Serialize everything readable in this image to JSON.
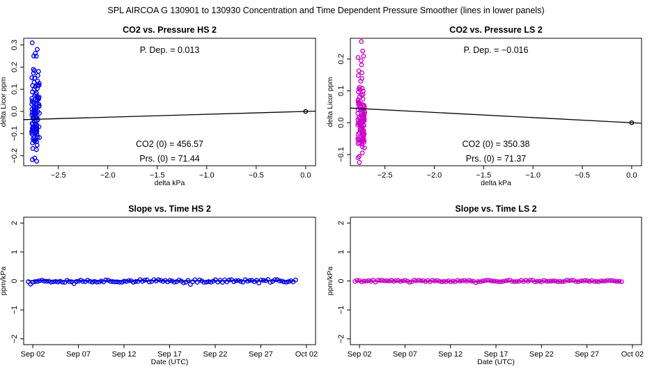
{
  "figure": {
    "title": "SPL   AIRCOA G   130901 to 130930   Concentration and Time Dependent Pressure Smoother (lines in lower panels)"
  },
  "chart_data": [
    {
      "id": "hs-pressure",
      "type": "scatter",
      "title": "CO2 vs. Pressure HS 2",
      "xlabel": "delta kPa",
      "ylabel": "delta Licor ppm",
      "xlim": [
        -2.85,
        0.1
      ],
      "ylim": [
        -0.245,
        0.33
      ],
      "xticks": [
        -2.5,
        -2.0,
        -1.5,
        -1.0,
        -0.5,
        0.0
      ],
      "xtick_labels": [
        "−2.5",
        "−2.0",
        "−1.5",
        "−1.0",
        "−0.5",
        "0.0"
      ],
      "yticks": [
        -0.2,
        -0.1,
        0.0,
        0.1,
        0.2,
        0.3
      ],
      "ytick_labels": [
        "−0.2",
        "−0.1",
        "0.0",
        "0.1",
        "0.2",
        "0.3"
      ],
      "point_color": "#0000ee",
      "cluster": {
        "x_center": -2.73,
        "x_spread": 0.04,
        "y_min": -0.225,
        "y_max": 0.31,
        "n": 110,
        "seed": 11
      },
      "reference_point": [
        0.0,
        0.0
      ],
      "fit_line": {
        "x": [
          -2.85,
          0.1
        ],
        "y": [
          -0.037,
          0.0013
        ]
      },
      "annotations": {
        "p_dep": "P. Dep. =  0.013",
        "co2_0": "CO2 (0) =  456.57",
        "prs_0": "Prs. (0) = 71.44"
      }
    },
    {
      "id": "ls-pressure",
      "type": "scatter",
      "title": "CO2 vs. Pressure LS 2",
      "xlabel": "delta kPa",
      "ylabel": "delta Licor ppm",
      "xlim": [
        -2.85,
        0.1
      ],
      "ylim": [
        -0.135,
        0.265
      ],
      "xticks": [
        -2.5,
        -2.0,
        -1.5,
        -1.0,
        -0.5,
        0.0
      ],
      "xtick_labels": [
        "−2.5",
        "−2.0",
        "−1.5",
        "−1.0",
        "−0.5",
        "0.0"
      ],
      "yticks": [
        -0.1,
        0.0,
        0.1,
        0.2
      ],
      "ytick_labels": [
        "−0.1",
        "0.0",
        "0.1",
        "0.2"
      ],
      "point_color": "#cc00cc",
      "cluster": {
        "x_center": -2.74,
        "x_spread": 0.035,
        "y_min": -0.125,
        "y_max": 0.255,
        "n": 110,
        "seed": 23
      },
      "reference_point": [
        0.0,
        0.0
      ],
      "fit_line": {
        "x": [
          -2.85,
          0.1
        ],
        "y": [
          0.046,
          -0.0016
        ]
      },
      "annotations": {
        "p_dep": "P. Dep. =  −0.016",
        "co2_0": "CO2 (0) =  350.38",
        "prs_0": "Prs. (0) = 71.37"
      }
    },
    {
      "id": "hs-slope",
      "type": "scatter",
      "title": "Slope vs. Time HS 2",
      "xlabel": "Date (UTC)",
      "ylabel": "ppm/kPa",
      "xlim": [
        0,
        32
      ],
      "ylim": [
        -2.2,
        2.2
      ],
      "xticks": [
        1,
        6,
        11,
        16,
        21,
        26,
        31
      ],
      "xtick_labels": [
        "Sep 02",
        "Sep 07",
        "Sep 12",
        "Sep 17",
        "Sep 22",
        "Sep 27",
        "Oct 02"
      ],
      "yticks": [
        -2,
        -1,
        0,
        1,
        2
      ],
      "ytick_labels": [
        "−2",
        "−1",
        "0",
        "1",
        "2"
      ],
      "point_color": "#0000ee",
      "series": {
        "x_start": 0.5,
        "x_end": 29.8,
        "n": 118,
        "y_spread": 0.05,
        "seed": 37
      },
      "smoother": {
        "x": [
          0.5,
          29.8
        ],
        "y": [
          0.01,
          0.01
        ]
      }
    },
    {
      "id": "ls-slope",
      "type": "scatter",
      "title": "Slope vs. Time LS 2",
      "xlabel": "Date (UTC)",
      "ylabel": "ppm/kPa",
      "xlim": [
        0,
        32
      ],
      "ylim": [
        -2.2,
        2.2
      ],
      "xticks": [
        1,
        6,
        11,
        16,
        21,
        26,
        31
      ],
      "xtick_labels": [
        "Sep 02",
        "Sep 07",
        "Sep 12",
        "Sep 17",
        "Sep 22",
        "Sep 27",
        "Oct 02"
      ],
      "yticks": [
        -2,
        -1,
        0,
        1,
        2
      ],
      "ytick_labels": [
        "−2",
        "−1",
        "0",
        "1",
        "2"
      ],
      "point_color": "#cc00cc",
      "series": {
        "x_start": 0.5,
        "x_end": 29.8,
        "n": 118,
        "y_spread": 0.03,
        "seed": 41
      },
      "smoother": {
        "x": [
          0.5,
          29.8
        ],
        "y": [
          -0.01,
          -0.01
        ]
      }
    }
  ]
}
